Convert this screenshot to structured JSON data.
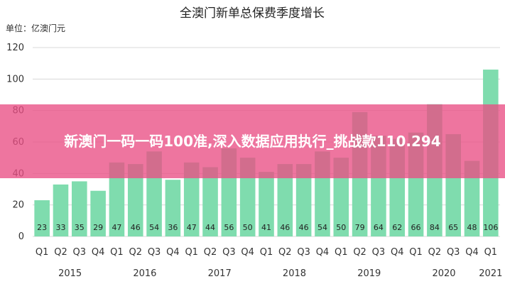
{
  "chart_data": {
    "type": "bar",
    "title": "全澳门新单总保费季度增长",
    "unit_label": "单位：亿澳门元",
    "ylim": [
      0,
      120
    ],
    "yticks": [
      0,
      20,
      40,
      60,
      80,
      100,
      120
    ],
    "grid": true,
    "bar_color": "#7fdcae",
    "categories": [
      "Q1",
      "Q2",
      "Q3",
      "Q4",
      "Q1",
      "Q2",
      "Q3",
      "Q4",
      "Q1",
      "Q2",
      "Q3",
      "Q4",
      "Q1",
      "Q2",
      "Q3",
      "Q4",
      "Q1",
      "Q2",
      "Q3",
      "Q4",
      "Q1",
      "Q2",
      "Q3",
      "Q4",
      "Q1"
    ],
    "values": [
      23,
      33,
      35,
      29,
      47,
      46,
      54,
      36,
      47,
      44,
      56,
      50,
      41,
      46,
      46,
      54,
      50,
      79,
      64,
      62,
      66,
      84,
      65,
      48,
      106
    ],
    "years": [
      {
        "label": "2015",
        "start": 0,
        "count": 4
      },
      {
        "label": "2016",
        "start": 4,
        "count": 4
      },
      {
        "label": "2017",
        "start": 8,
        "count": 4
      },
      {
        "label": "2018",
        "start": 12,
        "count": 4
      },
      {
        "label": "2019",
        "start": 16,
        "count": 4
      },
      {
        "label": "2020",
        "start": 20,
        "count": 4
      },
      {
        "label": "2021",
        "start": 24,
        "count": 1
      }
    ]
  },
  "banner": {
    "text": "新澳门一码一码100准,深入数据应用执行_挑战款110.294",
    "color": "#e94e84"
  }
}
